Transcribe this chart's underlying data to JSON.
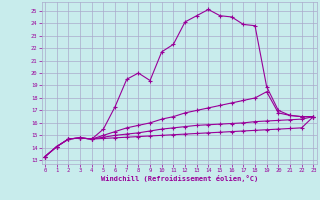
{
  "xlabel": "Windchill (Refroidissement éolien,°C)",
  "bg_color": "#c8ecec",
  "grid_color": "#aaaacc",
  "line_color": "#990099",
  "x_ticks": [
    0,
    1,
    2,
    3,
    4,
    5,
    6,
    7,
    8,
    9,
    10,
    11,
    12,
    13,
    14,
    15,
    16,
    17,
    18,
    19,
    20,
    21,
    22,
    23
  ],
  "y_ticks": [
    13,
    14,
    15,
    16,
    17,
    18,
    19,
    20,
    21,
    22,
    23,
    24,
    25
  ],
  "xlim": [
    -0.3,
    23.3
  ],
  "ylim": [
    12.7,
    25.7
  ],
  "series": [
    {
      "x": [
        0,
        1,
        2,
        3,
        4,
        5,
        6,
        7,
        8,
        9,
        10,
        11,
        12,
        13,
        14,
        15,
        16,
        17,
        18,
        19,
        20,
        21,
        22,
        23
      ],
      "y": [
        13.3,
        14.1,
        14.7,
        14.8,
        14.7,
        15.5,
        17.3,
        19.5,
        20.0,
        19.4,
        21.7,
        22.3,
        24.1,
        24.6,
        25.1,
        24.6,
        24.5,
        23.9,
        23.8,
        18.9,
        17.0,
        16.6,
        16.5,
        16.5
      ]
    },
    {
      "x": [
        0,
        1,
        2,
        3,
        4,
        5,
        6,
        7,
        8,
        9,
        10,
        11,
        12,
        13,
        14,
        15,
        16,
        17,
        18,
        19,
        20,
        21,
        22,
        23
      ],
      "y": [
        13.3,
        14.1,
        14.7,
        14.8,
        14.7,
        15.0,
        15.3,
        15.6,
        15.8,
        16.0,
        16.3,
        16.5,
        16.8,
        17.0,
        17.2,
        17.4,
        17.6,
        17.8,
        18.0,
        18.5,
        16.8,
        16.6,
        16.5,
        16.5
      ]
    },
    {
      "x": [
        0,
        1,
        2,
        3,
        4,
        5,
        6,
        7,
        8,
        9,
        10,
        11,
        12,
        13,
        14,
        15,
        16,
        17,
        18,
        19,
        20,
        21,
        22,
        23
      ],
      "y": [
        13.3,
        14.1,
        14.7,
        14.8,
        14.7,
        14.85,
        15.0,
        15.1,
        15.2,
        15.35,
        15.5,
        15.6,
        15.7,
        15.8,
        15.85,
        15.9,
        15.95,
        16.0,
        16.1,
        16.15,
        16.2,
        16.25,
        16.3,
        16.5
      ]
    },
    {
      "x": [
        0,
        1,
        2,
        3,
        4,
        5,
        6,
        7,
        8,
        9,
        10,
        11,
        12,
        13,
        14,
        15,
        16,
        17,
        18,
        19,
        20,
        21,
        22,
        23
      ],
      "y": [
        13.3,
        14.1,
        14.7,
        14.8,
        14.7,
        14.75,
        14.8,
        14.85,
        14.9,
        14.95,
        15.0,
        15.05,
        15.1,
        15.15,
        15.2,
        15.25,
        15.3,
        15.35,
        15.4,
        15.45,
        15.5,
        15.55,
        15.6,
        16.5
      ]
    }
  ]
}
